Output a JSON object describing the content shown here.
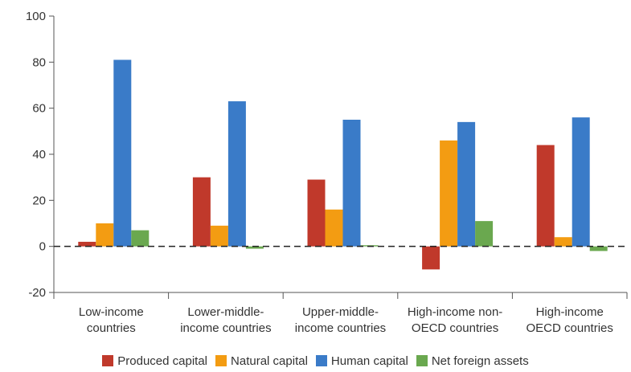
{
  "chart_data": {
    "type": "bar",
    "title": "",
    "xlabel": "",
    "ylabel": "",
    "ylim": [
      -20,
      100
    ],
    "yticks": [
      -20,
      0,
      20,
      40,
      60,
      80,
      100
    ],
    "categories": [
      [
        "Low-income",
        "countries"
      ],
      [
        "Lower-middle-",
        "income countries"
      ],
      [
        "Upper-middle-",
        "income countries"
      ],
      [
        "High-income non-",
        "OECD countries"
      ],
      [
        "High-income",
        "OECD countries"
      ]
    ],
    "series": [
      {
        "name": "Produced capital",
        "color": "#c0392b",
        "values": [
          2,
          30,
          29,
          -10,
          44
        ]
      },
      {
        "name": "Natural capital",
        "color": "#f39c12",
        "values": [
          10,
          9,
          16,
          46,
          4
        ]
      },
      {
        "name": "Human capital",
        "color": "#3a7bc8",
        "values": [
          81,
          63,
          55,
          54,
          56
        ]
      },
      {
        "name": "Net foreign assets",
        "color": "#6aa84f",
        "values": [
          7,
          -1,
          0.5,
          11,
          -2
        ]
      }
    ],
    "zero_line": "dashed",
    "legend_position": "bottom"
  }
}
